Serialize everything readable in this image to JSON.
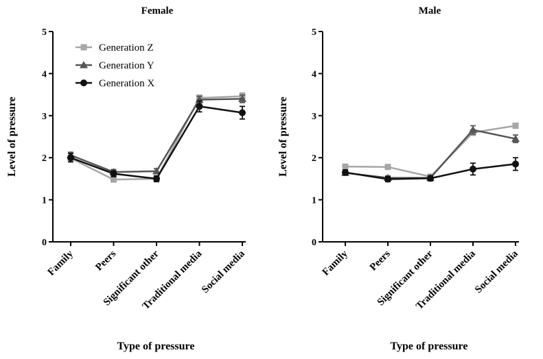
{
  "chart_data": [
    {
      "type": "line",
      "title": "Female",
      "xlabel": "Type of pressure",
      "ylabel": "Level of pressure",
      "ylim": [
        0,
        5
      ],
      "yticks": [
        0,
        1,
        2,
        3,
        4,
        5
      ],
      "categories": [
        "Family",
        "Peers",
        "Significant other",
        "Traditional media",
        "Social media"
      ],
      "legend_position": "top-left",
      "series": [
        {
          "name": "Generation Z",
          "color": "#a6a6a6",
          "marker": "square",
          "values": [
            1.99,
            1.48,
            1.5,
            3.42,
            3.46
          ],
          "errors": [
            0.06,
            0.05,
            0.05,
            0.07,
            0.08
          ]
        },
        {
          "name": "Generation Y",
          "color": "#555555",
          "marker": "triangle",
          "values": [
            2.06,
            1.66,
            1.68,
            3.38,
            3.4
          ],
          "errors": [
            0.07,
            0.06,
            0.06,
            0.08,
            0.09
          ]
        },
        {
          "name": "Generation X",
          "color": "#111111",
          "marker": "circle",
          "values": [
            2.0,
            1.62,
            1.5,
            3.22,
            3.07
          ],
          "errors": [
            0.1,
            0.07,
            0.07,
            0.13,
            0.15
          ]
        }
      ]
    },
    {
      "type": "line",
      "title": "Male",
      "xlabel": "Type of pressure",
      "ylabel": "Level of pressure",
      "ylim": [
        0,
        5
      ],
      "yticks": [
        0,
        1,
        2,
        3,
        4,
        5
      ],
      "categories": [
        "Family",
        "Peers",
        "Significant other",
        "Traditional media",
        "Social media"
      ],
      "series": [
        {
          "name": "Generation Z",
          "color": "#a6a6a6",
          "marker": "square",
          "values": [
            1.79,
            1.78,
            1.55,
            2.6,
            2.76
          ],
          "errors": [
            0.04,
            0.04,
            0.05,
            0.07,
            0.06
          ]
        },
        {
          "name": "Generation Y",
          "color": "#555555",
          "marker": "triangle",
          "values": [
            1.64,
            1.52,
            1.52,
            2.66,
            2.45
          ],
          "errors": [
            0.05,
            0.05,
            0.05,
            0.1,
            0.09
          ]
        },
        {
          "name": "Generation X",
          "color": "#111111",
          "marker": "circle",
          "values": [
            1.65,
            1.49,
            1.51,
            1.73,
            1.85
          ],
          "errors": [
            0.06,
            0.06,
            0.06,
            0.14,
            0.15
          ]
        }
      ]
    }
  ]
}
